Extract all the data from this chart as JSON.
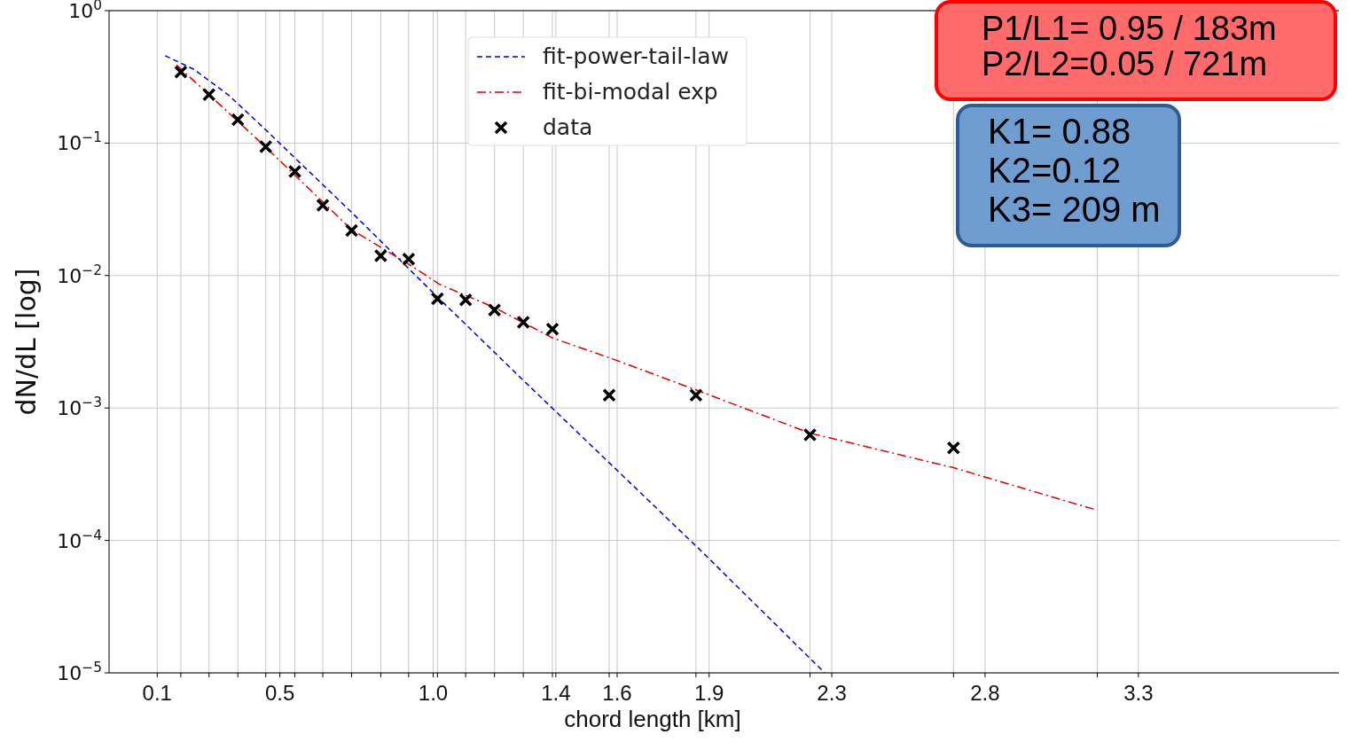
{
  "chart_data": {
    "type": "line",
    "xlabel": "chord length [km]",
    "ylabel": "dN/dL [log]",
    "xlim": [
      -0.057,
      3.954
    ],
    "ylim": [
      1e-05,
      1
    ],
    "log": "y",
    "grid": true,
    "legend": "top",
    "xticks": [
      0.1,
      0.5,
      {
        "value": 1,
        "label": "1.0"
      },
      1.4,
      1.6,
      1.9,
      2.3,
      2.8,
      3.3,
      {
        "value": 0.177,
        "label": null
      },
      {
        "value": 0.269,
        "label": null
      },
      {
        "value": 0.363,
        "label": null
      },
      {
        "value": 0.454,
        "label": null
      },
      {
        "value": 0.549,
        "label": null
      },
      {
        "value": 0.64,
        "label": null
      },
      {
        "value": 0.734,
        "label": null
      },
      {
        "value": 0.829,
        "label": null
      },
      {
        "value": 0.92,
        "label": null
      },
      {
        "value": 1.014,
        "label": null
      },
      {
        "value": 1.106,
        "label": null
      },
      {
        "value": 1.2,
        "label": null
      },
      {
        "value": 1.294,
        "label": null
      },
      {
        "value": 1.389,
        "label": null
      },
      {
        "value": 1.574,
        "label": null
      },
      {
        "value": 1.857,
        "label": null
      },
      {
        "value": 2.229,
        "label": null
      },
      {
        "value": 2.697,
        "label": null
      },
      {
        "value": 3.166,
        "label": null
      }
    ],
    "yticks": [
      {
        "value": 1,
        "label": "10$^{0}$"
      },
      {
        "value": 0.1,
        "label": "10$^{−1}$"
      },
      {
        "value": 0.01,
        "label": "10$^{−2}$"
      },
      {
        "value": 0.001,
        "label": "10$^{−3}$"
      },
      {
        "value": 0.0001,
        "label": "10$^{−4}$"
      },
      {
        "value": 1e-05,
        "label": "10$^{−5}$"
      }
    ],
    "annotations": [
      "P1/L1= 0.95 / 183m",
      "P2/L2=0.05 / 721m",
      "K1= 0.88",
      "K2=0.12",
      "K3= 209 m"
    ],
    "series": [
      {
        "name": "fit-power-tail-law",
        "color": "#0000dd",
        "line_style": "dashed",
        "x": [
          0.126,
          0.22,
          0.334,
          0.449,
          0.734,
          1.02,
          1.306,
          1.591,
          1.877,
          2.277
        ],
        "values": [
          0.457,
          0.36,
          0.229,
          0.129,
          0.03,
          0.00667,
          0.00152,
          0.000354,
          8.2e-05,
          1e-05
        ]
      },
      {
        "name": "fit-bi-modal exp",
        "color": "#dd0000",
        "line_style": "dashdot",
        "x": [
          0.163,
          0.269,
          0.449,
          0.734,
          0.92,
          1.02,
          1.2,
          1.389,
          1.591,
          1.857,
          2.229,
          2.697,
          3.166
        ],
        "values": [
          0.388,
          0.232,
          0.0955,
          0.0222,
          0.0122,
          0.0086,
          0.00573,
          0.00338,
          0.00232,
          0.00137,
          0.000646,
          0.000354,
          0.000169
        ]
      },
      {
        "name": "data",
        "type": "scatter",
        "color": "#000000",
        "marker": "cross",
        "x": [
          0.177,
          0.269,
          0.363,
          0.454,
          0.549,
          0.64,
          0.734,
          0.829,
          0.92,
          1.014,
          1.106,
          1.2,
          1.294,
          1.389,
          1.574,
          1.857,
          2.229,
          2.697
        ],
        "values": [
          0.344,
          0.232,
          0.15,
          0.094,
          0.061,
          0.034,
          0.0219,
          0.0141,
          0.0133,
          0.00667,
          0.00656,
          0.00548,
          0.00444,
          0.00394,
          0.00125,
          0.00125,
          0.000627,
          0.0005
        ]
      }
    ]
  }
}
